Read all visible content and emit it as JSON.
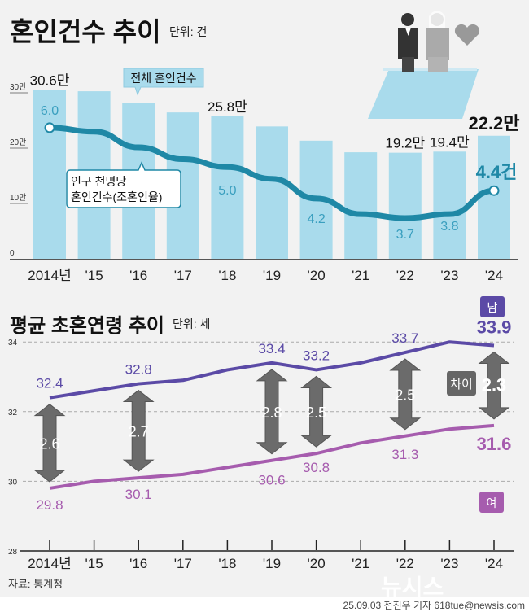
{
  "chart_data": [
    {
      "type": "bar",
      "title": "혼인건수 추이",
      "unit": "단위: 건",
      "categories": [
        "2014년",
        "'15",
        "'16",
        "'17",
        "'18",
        "'19",
        "'20",
        "'21",
        "'22",
        "'23",
        "'24"
      ],
      "yticks": [
        "30만",
        "20만",
        "10만",
        "0"
      ],
      "ylim": [
        0,
        300000
      ],
      "series": [
        {
          "name": "전체 혼인건수",
          "type": "bar",
          "color": "#a9dbec",
          "values": [
            305500,
            302800,
            281600,
            264500,
            257600,
            239200,
            213500,
            192500,
            191700,
            193700,
            222400
          ]
        },
        {
          "name": "인구 천명당 혼인건수(조혼인율)",
          "type": "line",
          "color": "#1f88a6",
          "values": [
            6.0,
            5.9,
            5.5,
            5.2,
            5.0,
            4.7,
            4.2,
            3.8,
            3.7,
            3.8,
            4.4
          ]
        }
      ],
      "bar_labels": {
        "0": "30.6만",
        "4": "25.8만",
        "8": "19.2만",
        "9": "19.4만",
        "10": "22.2만"
      },
      "rate_labels": {
        "0": "6.0",
        "4": "5.0",
        "6": "4.2",
        "8": "3.7",
        "9": "3.8",
        "10": "4.4건"
      }
    },
    {
      "type": "line",
      "title": "평균 초혼연령 추이",
      "unit": "단위: 세",
      "categories": [
        "2014년",
        "'15",
        "'16",
        "'17",
        "'18",
        "'19",
        "'20",
        "'21",
        "'22",
        "'23",
        "'24"
      ],
      "yticks": [
        "34",
        "32",
        "30",
        "28"
      ],
      "ylim": [
        28,
        34
      ],
      "grid": true,
      "series": [
        {
          "name": "남",
          "color": "#5b4aa6",
          "values": [
            32.4,
            32.6,
            32.8,
            32.9,
            33.2,
            33.4,
            33.2,
            33.4,
            33.7,
            34.0,
            33.9
          ]
        },
        {
          "name": "여",
          "color": "#a65cae",
          "values": [
            29.8,
            30.0,
            30.1,
            30.2,
            30.4,
            30.6,
            30.8,
            31.1,
            31.3,
            31.5,
            31.6
          ]
        }
      ],
      "men_labels": {
        "0": "32.4",
        "2": "32.8",
        "5": "33.4",
        "6": "33.2",
        "8": "33.7",
        "10": "33.9"
      },
      "women_labels": {
        "0": "29.8",
        "2": "30.1",
        "5": "30.6",
        "6": "30.8",
        "8": "31.3",
        "10": "31.6"
      },
      "gaps": {
        "0": "2.6",
        "2": "2.7",
        "5": "2.8",
        "6": "2.5",
        "8": "2.5",
        "10": "2.3"
      },
      "gap_label": "차이"
    }
  ],
  "source": "자료: 통계청",
  "credit": "25.09.03 전진우 기자 618tue@newsis.com",
  "watermark": "뉴시스"
}
